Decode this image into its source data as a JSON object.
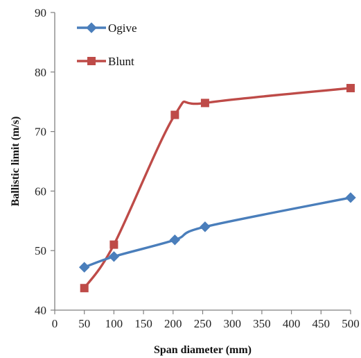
{
  "chart_data": {
    "type": "line",
    "title": "",
    "xlabel": "Span diameter (mm)",
    "ylabel": "Ballistic limit (m/s)",
    "xlim": [
      0,
      500
    ],
    "ylim": [
      40,
      90
    ],
    "x_ticks": [
      0,
      50,
      100,
      150,
      200,
      250,
      300,
      350,
      400,
      450,
      500
    ],
    "y_ticks": [
      40,
      50,
      60,
      70,
      80,
      90
    ],
    "x_tick_labels": [
      "0",
      "50",
      "100",
      "150",
      "200",
      "250",
      "300",
      "350",
      "400",
      "450",
      "500"
    ],
    "y_tick_labels": [
      "40",
      "50",
      "60",
      "70",
      "80",
      "90"
    ],
    "grid": false,
    "smooth": true,
    "legend_position": "top-left",
    "series": [
      {
        "name": "Ogive",
        "color": "#4a7ebb",
        "marker": "diamond",
        "x": [
          50,
          100,
          203,
          254,
          500
        ],
        "y": [
          47.2,
          49.0,
          51.8,
          54.0,
          58.9
        ]
      },
      {
        "name": "Blunt",
        "color": "#be4b48",
        "marker": "square",
        "x": [
          50,
          100,
          203,
          254,
          500
        ],
        "y": [
          43.7,
          51.0,
          72.8,
          74.8,
          77.3
        ]
      }
    ]
  }
}
